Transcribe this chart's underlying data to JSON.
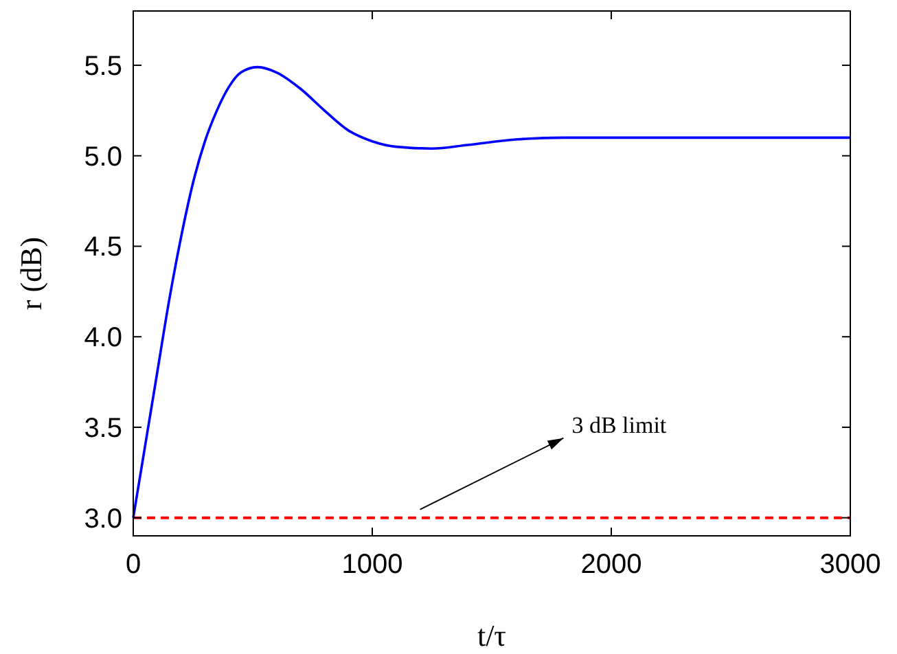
{
  "chart_data": {
    "type": "line",
    "xlabel": "t/τ",
    "ylabel": "r (dB)",
    "x": [
      0,
      25,
      50,
      100,
      150,
      200,
      250,
      300,
      350,
      400,
      450,
      520,
      600,
      700,
      800,
      900,
      1000,
      1100,
      1250,
      1400,
      1600,
      1800,
      2000,
      2300,
      2600,
      3000
    ],
    "series": [
      {
        "color": "#0000ff",
        "values": [
          3.0,
          3.2,
          3.4,
          3.8,
          4.2,
          4.55,
          4.85,
          5.08,
          5.25,
          5.38,
          5.46,
          5.49,
          5.46,
          5.37,
          5.25,
          5.14,
          5.08,
          5.05,
          5.04,
          5.06,
          5.09,
          5.1,
          5.1,
          5.1,
          5.1,
          5.1
        ]
      }
    ],
    "xlim": [
      0,
      3000
    ],
    "xticks": [
      0,
      1000,
      2000,
      3000
    ],
    "ylim": [
      2.9,
      5.8
    ],
    "yticks": [
      {
        "value": 3,
        "label": "3.0"
      },
      {
        "value": 3.5,
        "label": "3.5"
      },
      {
        "value": 4,
        "label": "4.0"
      },
      {
        "value": 4.5,
        "label": "4.5"
      },
      {
        "value": 5,
        "label": "5.0"
      },
      {
        "value": 5.5,
        "label": "5.5"
      }
    ],
    "ref_lines": [
      {
        "axis": "y",
        "value": 3,
        "label": "3 dB limit",
        "color": "#ff0000",
        "line_style": "dashed"
      }
    ],
    "grid": false,
    "marker": "none",
    "line_style": "solid"
  }
}
